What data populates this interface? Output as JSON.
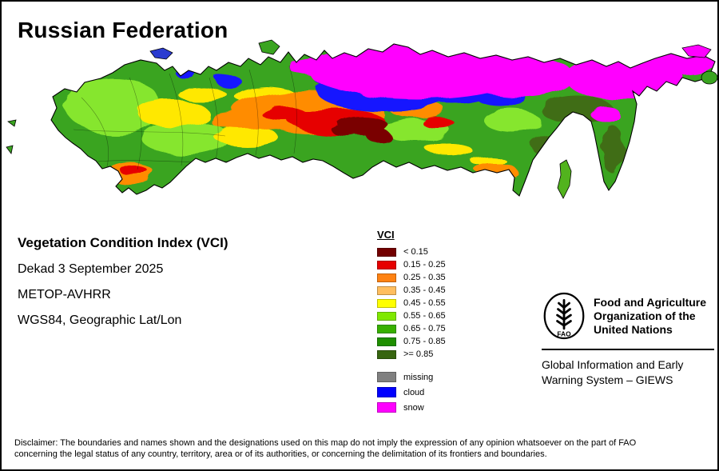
{
  "title": "Russian Federation",
  "metadata": {
    "index": "Vegetation Condition Index (VCI)",
    "dekad": "Dekad 3 September 2025",
    "sensor": "METOP-AVHRR",
    "projection": "WGS84, Geographic Lat/Lon"
  },
  "legend": {
    "title": "VCI",
    "items": [
      {
        "label": "< 0.15",
        "color": "#730000"
      },
      {
        "label": "0.15 - 0.25",
        "color": "#e60000"
      },
      {
        "label": "0.25 - 0.35",
        "color": "#ff8212"
      },
      {
        "label": "0.35 - 0.45",
        "color": "#ffbe5f"
      },
      {
        "label": "0.45 - 0.55",
        "color": "#ffff00"
      },
      {
        "label": "0.55 - 0.65",
        "color": "#7fe800"
      },
      {
        "label": "0.65 - 0.75",
        "color": "#38b000"
      },
      {
        "label": "0.75 - 0.85",
        "color": "#1f8f00"
      },
      {
        "label": ">= 0.85",
        "color": "#37650f"
      }
    ],
    "extra_items": [
      {
        "label": "missing",
        "color": "#808080"
      },
      {
        "label": "cloud",
        "color": "#0000ff"
      },
      {
        "label": "snow",
        "color": "#ff00ff"
      }
    ]
  },
  "fao": {
    "logo_label": "FAO",
    "org_lines": [
      "Food and Agriculture",
      "Organization of the",
      "United Nations"
    ],
    "giews_lines": [
      "Global Information and Early",
      "Warning System – GIEWS"
    ]
  },
  "disclaimer": {
    "line1": "Disclaimer: The boundaries and names shown and the designations used on this map do not imply the expression of any opinion whatsoever on the part of FAO",
    "line2": "concerning the legal status of any country, territory, area or of its authorities, or concerning the delimitation of its frontiers and boundaries."
  }
}
